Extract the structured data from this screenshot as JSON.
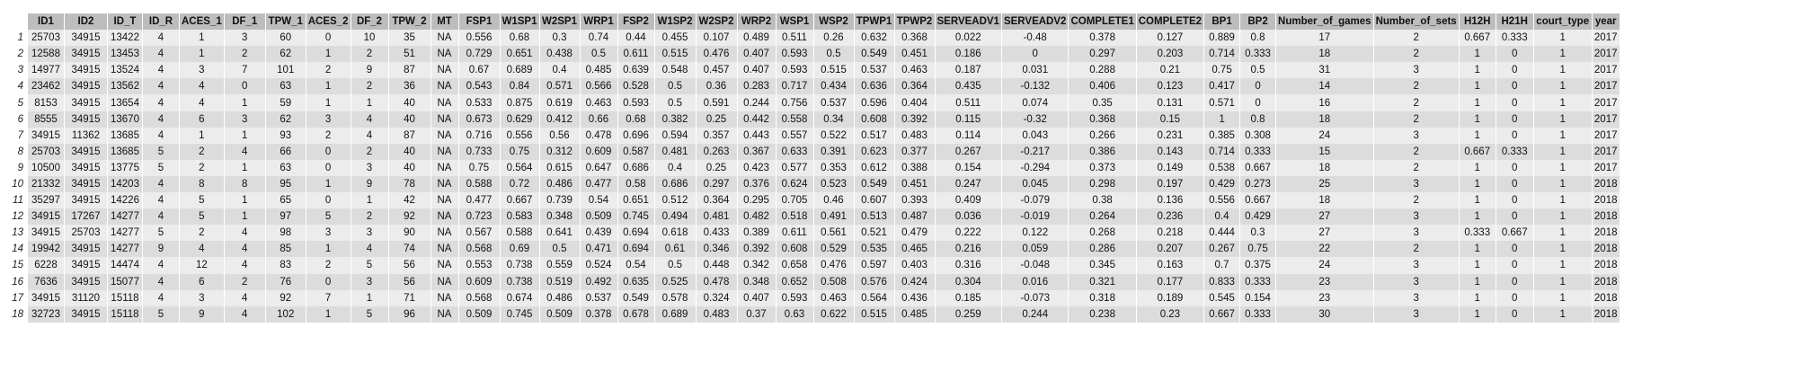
{
  "columns": [
    "ID1",
    "ID2",
    "ID_T",
    "ID_R",
    "ACES_1",
    "DF_1",
    "TPW_1",
    "ACES_2",
    "DF_2",
    "TPW_2",
    "MT",
    "FSP1",
    "W1SP1",
    "W2SP1",
    "WRP1",
    "FSP2",
    "W1SP2",
    "W2SP2",
    "WRP2",
    "WSP1",
    "WSP2",
    "TPWP1",
    "TPWP2",
    "SERVEADV1",
    "SERVEADV2",
    "COMPLETE1",
    "COMPLETE2",
    "BP1",
    "BP2",
    "Number_of_games",
    "Number_of_sets",
    "H12H",
    "H21H",
    "court_type",
    "year"
  ],
  "rows": [
    {
      "n": "1",
      "cells": [
        "25703",
        "34915",
        "13422",
        "4",
        "1",
        "3",
        "60",
        "0",
        "10",
        "35",
        "NA",
        "0.556",
        "0.68",
        "0.3",
        "0.74",
        "0.44",
        "0.455",
        "0.107",
        "0.489",
        "0.511",
        "0.26",
        "0.632",
        "0.368",
        "0.022",
        "-0.48",
        "0.378",
        "0.127",
        "0.889",
        "0.8",
        "17",
        "2",
        "0.667",
        "0.333",
        "1",
        "2017"
      ]
    },
    {
      "n": "2",
      "cells": [
        "12588",
        "34915",
        "13453",
        "4",
        "1",
        "2",
        "62",
        "1",
        "2",
        "51",
        "NA",
        "0.729",
        "0.651",
        "0.438",
        "0.5",
        "0.611",
        "0.515",
        "0.476",
        "0.407",
        "0.593",
        "0.5",
        "0.549",
        "0.451",
        "0.186",
        "0",
        "0.297",
        "0.203",
        "0.714",
        "0.333",
        "18",
        "2",
        "1",
        "0",
        "1",
        "2017"
      ]
    },
    {
      "n": "3",
      "cells": [
        "14977",
        "34915",
        "13524",
        "4",
        "3",
        "7",
        "101",
        "2",
        "9",
        "87",
        "NA",
        "0.67",
        "0.689",
        "0.4",
        "0.485",
        "0.639",
        "0.548",
        "0.457",
        "0.407",
        "0.593",
        "0.515",
        "0.537",
        "0.463",
        "0.187",
        "0.031",
        "0.288",
        "0.21",
        "0.75",
        "0.5",
        "31",
        "3",
        "1",
        "0",
        "1",
        "2017"
      ]
    },
    {
      "n": "4",
      "cells": [
        "23462",
        "34915",
        "13562",
        "4",
        "4",
        "0",
        "63",
        "1",
        "2",
        "36",
        "NA",
        "0.543",
        "0.84",
        "0.571",
        "0.566",
        "0.528",
        "0.5",
        "0.36",
        "0.283",
        "0.717",
        "0.434",
        "0.636",
        "0.364",
        "0.435",
        "-0.132",
        "0.406",
        "0.123",
        "0.417",
        "0",
        "14",
        "2",
        "1",
        "0",
        "1",
        "2017"
      ]
    },
    {
      "n": "5",
      "cells": [
        "8153",
        "34915",
        "13654",
        "4",
        "4",
        "1",
        "59",
        "1",
        "1",
        "40",
        "NA",
        "0.533",
        "0.875",
        "0.619",
        "0.463",
        "0.593",
        "0.5",
        "0.591",
        "0.244",
        "0.756",
        "0.537",
        "0.596",
        "0.404",
        "0.511",
        "0.074",
        "0.35",
        "0.131",
        "0.571",
        "0",
        "16",
        "2",
        "1",
        "0",
        "1",
        "2017"
      ]
    },
    {
      "n": "6",
      "cells": [
        "8555",
        "34915",
        "13670",
        "4",
        "6",
        "3",
        "62",
        "3",
        "4",
        "40",
        "NA",
        "0.673",
        "0.629",
        "0.412",
        "0.66",
        "0.68",
        "0.382",
        "0.25",
        "0.442",
        "0.558",
        "0.34",
        "0.608",
        "0.392",
        "0.115",
        "-0.32",
        "0.368",
        "0.15",
        "1",
        "0.8",
        "18",
        "2",
        "1",
        "0",
        "1",
        "2017"
      ]
    },
    {
      "n": "7",
      "cells": [
        "34915",
        "11362",
        "13685",
        "4",
        "1",
        "1",
        "93",
        "2",
        "4",
        "87",
        "NA",
        "0.716",
        "0.556",
        "0.56",
        "0.478",
        "0.696",
        "0.594",
        "0.357",
        "0.443",
        "0.557",
        "0.522",
        "0.517",
        "0.483",
        "0.114",
        "0.043",
        "0.266",
        "0.231",
        "0.385",
        "0.308",
        "24",
        "3",
        "1",
        "0",
        "1",
        "2017"
      ]
    },
    {
      "n": "8",
      "cells": [
        "25703",
        "34915",
        "13685",
        "5",
        "2",
        "4",
        "66",
        "0",
        "2",
        "40",
        "NA",
        "0.733",
        "0.75",
        "0.312",
        "0.609",
        "0.587",
        "0.481",
        "0.263",
        "0.367",
        "0.633",
        "0.391",
        "0.623",
        "0.377",
        "0.267",
        "-0.217",
        "0.386",
        "0.143",
        "0.714",
        "0.333",
        "15",
        "2",
        "0.667",
        "0.333",
        "1",
        "2017"
      ]
    },
    {
      "n": "9",
      "cells": [
        "10500",
        "34915",
        "13775",
        "5",
        "2",
        "1",
        "63",
        "0",
        "3",
        "40",
        "NA",
        "0.75",
        "0.564",
        "0.615",
        "0.647",
        "0.686",
        "0.4",
        "0.25",
        "0.423",
        "0.577",
        "0.353",
        "0.612",
        "0.388",
        "0.154",
        "-0.294",
        "0.373",
        "0.149",
        "0.538",
        "0.667",
        "18",
        "2",
        "1",
        "0",
        "1",
        "2017"
      ]
    },
    {
      "n": "10",
      "cells": [
        "21332",
        "34915",
        "14203",
        "4",
        "8",
        "8",
        "95",
        "1",
        "9",
        "78",
        "NA",
        "0.588",
        "0.72",
        "0.486",
        "0.477",
        "0.58",
        "0.686",
        "0.297",
        "0.376",
        "0.624",
        "0.523",
        "0.549",
        "0.451",
        "0.247",
        "0.045",
        "0.298",
        "0.197",
        "0.429",
        "0.273",
        "25",
        "3",
        "1",
        "0",
        "1",
        "2018"
      ]
    },
    {
      "n": "11",
      "cells": [
        "35297",
        "34915",
        "14226",
        "4",
        "5",
        "1",
        "65",
        "0",
        "1",
        "42",
        "NA",
        "0.477",
        "0.667",
        "0.739",
        "0.54",
        "0.651",
        "0.512",
        "0.364",
        "0.295",
        "0.705",
        "0.46",
        "0.607",
        "0.393",
        "0.409",
        "-0.079",
        "0.38",
        "0.136",
        "0.556",
        "0.667",
        "18",
        "2",
        "1",
        "0",
        "1",
        "2018"
      ]
    },
    {
      "n": "12",
      "cells": [
        "34915",
        "17267",
        "14277",
        "4",
        "5",
        "1",
        "97",
        "5",
        "2",
        "92",
        "NA",
        "0.723",
        "0.583",
        "0.348",
        "0.509",
        "0.745",
        "0.494",
        "0.481",
        "0.482",
        "0.518",
        "0.491",
        "0.513",
        "0.487",
        "0.036",
        "-0.019",
        "0.264",
        "0.236",
        "0.4",
        "0.429",
        "27",
        "3",
        "1",
        "0",
        "1",
        "2018"
      ]
    },
    {
      "n": "13",
      "cells": [
        "34915",
        "25703",
        "14277",
        "5",
        "2",
        "4",
        "98",
        "3",
        "3",
        "90",
        "NA",
        "0.567",
        "0.588",
        "0.641",
        "0.439",
        "0.694",
        "0.618",
        "0.433",
        "0.389",
        "0.611",
        "0.561",
        "0.521",
        "0.479",
        "0.222",
        "0.122",
        "0.268",
        "0.218",
        "0.444",
        "0.3",
        "27",
        "3",
        "0.333",
        "0.667",
        "1",
        "2018"
      ]
    },
    {
      "n": "14",
      "cells": [
        "19942",
        "34915",
        "14277",
        "9",
        "4",
        "4",
        "85",
        "1",
        "4",
        "74",
        "NA",
        "0.568",
        "0.69",
        "0.5",
        "0.471",
        "0.694",
        "0.61",
        "0.346",
        "0.392",
        "0.608",
        "0.529",
        "0.535",
        "0.465",
        "0.216",
        "0.059",
        "0.286",
        "0.207",
        "0.267",
        "0.75",
        "22",
        "2",
        "1",
        "0",
        "1",
        "2018"
      ]
    },
    {
      "n": "15",
      "cells": [
        "6228",
        "34915",
        "14474",
        "4",
        "12",
        "4",
        "83",
        "2",
        "5",
        "56",
        "NA",
        "0.553",
        "0.738",
        "0.559",
        "0.524",
        "0.54",
        "0.5",
        "0.448",
        "0.342",
        "0.658",
        "0.476",
        "0.597",
        "0.403",
        "0.316",
        "-0.048",
        "0.345",
        "0.163",
        "0.7",
        "0.375",
        "24",
        "3",
        "1",
        "0",
        "1",
        "2018"
      ]
    },
    {
      "n": "16",
      "cells": [
        "7636",
        "34915",
        "15077",
        "4",
        "6",
        "2",
        "76",
        "0",
        "3",
        "56",
        "NA",
        "0.609",
        "0.738",
        "0.519",
        "0.492",
        "0.635",
        "0.525",
        "0.478",
        "0.348",
        "0.652",
        "0.508",
        "0.576",
        "0.424",
        "0.304",
        "0.016",
        "0.321",
        "0.177",
        "0.833",
        "0.333",
        "23",
        "3",
        "1",
        "0",
        "1",
        "2018"
      ]
    },
    {
      "n": "17",
      "cells": [
        "34915",
        "31120",
        "15118",
        "4",
        "3",
        "4",
        "92",
        "7",
        "1",
        "71",
        "NA",
        "0.568",
        "0.674",
        "0.486",
        "0.537",
        "0.549",
        "0.578",
        "0.324",
        "0.407",
        "0.593",
        "0.463",
        "0.564",
        "0.436",
        "0.185",
        "-0.073",
        "0.318",
        "0.189",
        "0.545",
        "0.154",
        "23",
        "3",
        "1",
        "0",
        "1",
        "2018"
      ]
    },
    {
      "n": "18",
      "cells": [
        "32723",
        "34915",
        "15118",
        "5",
        "9",
        "4",
        "102",
        "1",
        "5",
        "96",
        "NA",
        "0.509",
        "0.745",
        "0.509",
        "0.378",
        "0.678",
        "0.689",
        "0.483",
        "0.37",
        "0.63",
        "0.622",
        "0.515",
        "0.485",
        "0.259",
        "0.244",
        "0.238",
        "0.23",
        "0.667",
        "0.333",
        "30",
        "3",
        "1",
        "0",
        "1",
        "2018"
      ]
    }
  ]
}
